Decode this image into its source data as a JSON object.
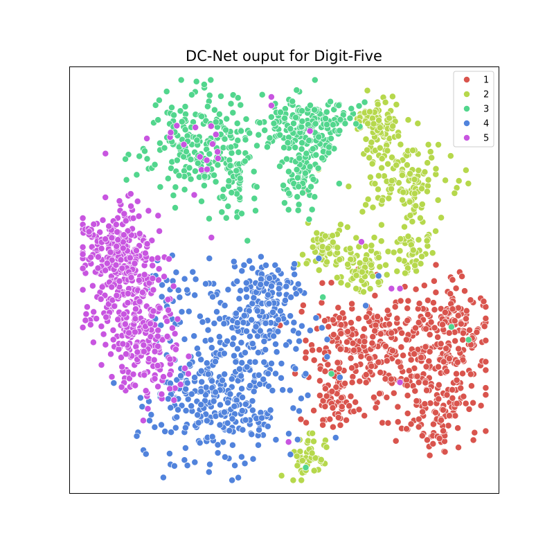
{
  "chart_data": {
    "type": "scatter",
    "title": "DC-Net ouput for Digit-Five",
    "xlabel": "",
    "ylabel": "",
    "xlim": [
      0,
      100
    ],
    "ylim": [
      0,
      100
    ],
    "axis_ticks": false,
    "grid": false,
    "legend_placement": "top-right",
    "marker": {
      "edge_color": "#ffffff"
    },
    "series": [
      {
        "name": "1",
        "color": "#d9544d",
        "clusters": [
          {
            "cx": 69,
            "cy": 34,
            "sx": 7.5,
            "sy": 6.0,
            "n": 230
          },
          {
            "cx": 87,
            "cy": 33,
            "sx": 5.5,
            "sy": 7.5,
            "n": 170
          },
          {
            "cx": 86,
            "cy": 17,
            "sx": 4.0,
            "sy": 4.5,
            "n": 80
          },
          {
            "cx": 62,
            "cy": 22,
            "sx": 3.0,
            "sy": 3.0,
            "n": 60
          },
          {
            "cx": 90,
            "cy": 40,
            "sx": 4.5,
            "sy": 4.0,
            "n": 60
          }
        ],
        "outliers": [
          [
            55,
            71
          ]
        ]
      },
      {
        "name": "2",
        "color": "#b6d84c",
        "clusters": [
          {
            "cx": 72,
            "cy": 87,
            "sx": 2.8,
            "sy": 3.2,
            "n": 90
          },
          {
            "cx": 79,
            "cy": 74,
            "sx": 5.5,
            "sy": 5.0,
            "n": 130
          },
          {
            "cx": 60,
            "cy": 57,
            "sx": 3.0,
            "sy": 3.0,
            "n": 60
          },
          {
            "cx": 68,
            "cy": 53,
            "sx": 2.5,
            "sy": 3.0,
            "n": 60
          },
          {
            "cx": 79,
            "cy": 56,
            "sx": 2.5,
            "sy": 2.5,
            "n": 50
          },
          {
            "cx": 56,
            "cy": 8,
            "sx": 2.0,
            "sy": 2.5,
            "n": 45
          }
        ],
        "outliers": [
          [
            58,
            76
          ],
          [
            65,
            72
          ],
          [
            71,
            60
          ]
        ]
      },
      {
        "name": "3",
        "color": "#52d68d",
        "clusters": [
          {
            "cx": 31,
            "cy": 82,
            "sx": 6.5,
            "sy": 6.5,
            "n": 220
          },
          {
            "cx": 54,
            "cy": 86,
            "sx": 4.5,
            "sy": 4.0,
            "n": 170
          },
          {
            "cx": 54,
            "cy": 74,
            "sx": 2.5,
            "sy": 4.0,
            "n": 60
          },
          {
            "cx": 62,
            "cy": 88,
            "sx": 3.5,
            "sy": 2.0,
            "n": 25
          },
          {
            "cx": 39,
            "cy": 73,
            "sx": 2.5,
            "sy": 4.0,
            "n": 35
          }
        ],
        "outliers": [
          [
            59,
            46
          ],
          [
            89,
            39
          ],
          [
            93,
            36
          ],
          [
            61,
            28
          ],
          [
            55,
            6
          ]
        ]
      },
      {
        "name": "4",
        "color": "#5183dc",
        "clusters": [
          {
            "cx": 34,
            "cy": 22,
            "sx": 8.5,
            "sy": 7.5,
            "n": 290
          },
          {
            "cx": 43,
            "cy": 40,
            "sx": 5.5,
            "sy": 6.0,
            "n": 160
          },
          {
            "cx": 47,
            "cy": 49,
            "sx": 3.5,
            "sy": 3.0,
            "n": 60
          },
          {
            "cx": 25,
            "cy": 47,
            "sx": 4.0,
            "sy": 6.0,
            "n": 40
          }
        ],
        "outliers": [
          [
            55,
            28
          ],
          [
            60,
            32
          ],
          [
            69,
            44
          ],
          [
            72,
            51
          ],
          [
            62,
            13
          ]
        ]
      },
      {
        "name": "5",
        "color": "#c855e0",
        "clusters": [
          {
            "cx": 13,
            "cy": 50,
            "sx": 4.5,
            "sy": 9.0,
            "n": 300
          },
          {
            "cx": 18,
            "cy": 35,
            "sx": 4.0,
            "sy": 6.5,
            "n": 140
          },
          {
            "cx": 9,
            "cy": 60,
            "sx": 3.5,
            "sy": 4.0,
            "n": 80
          },
          {
            "cx": 27,
            "cy": 80,
            "sx": 6.0,
            "sy": 5.0,
            "n": 14
          }
        ],
        "outliers": [
          [
            47,
            93
          ],
          [
            47,
            91
          ],
          [
            56,
            85
          ],
          [
            33,
            60
          ],
          [
            68,
            59
          ],
          [
            75,
            48
          ],
          [
            77,
            48
          ],
          [
            77,
            26
          ],
          [
            51,
            12
          ],
          [
            29,
            70
          ],
          [
            32,
            76
          ]
        ]
      }
    ]
  }
}
